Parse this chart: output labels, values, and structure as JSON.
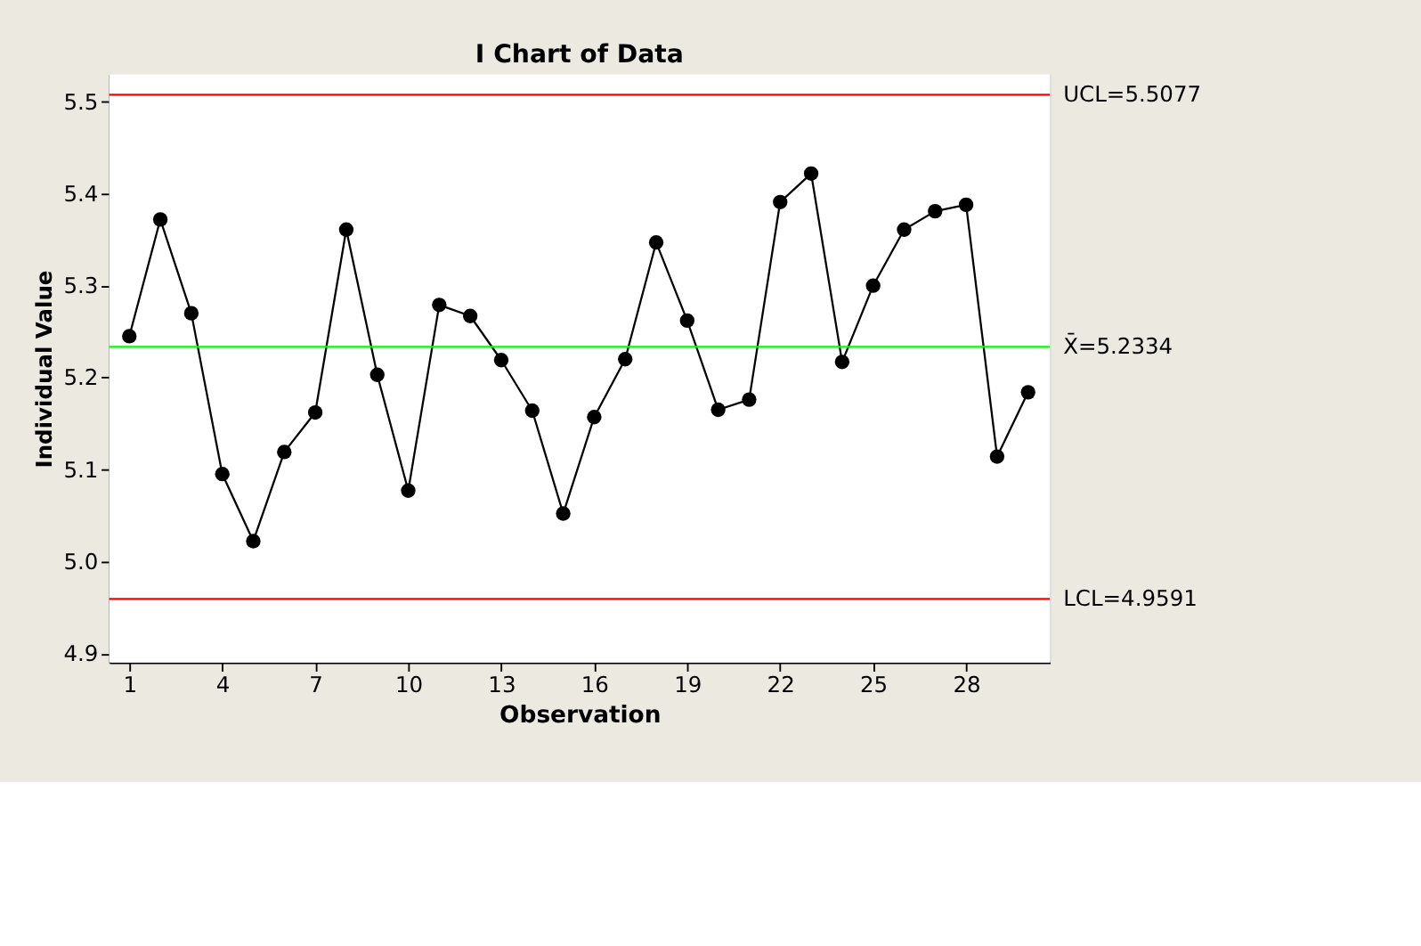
{
  "chart_data": {
    "type": "line",
    "title": "I Chart of Data",
    "xlabel": "Observation",
    "ylabel": "Individual Value",
    "x": [
      1,
      2,
      3,
      4,
      5,
      6,
      7,
      8,
      9,
      10,
      11,
      12,
      13,
      14,
      15,
      16,
      17,
      18,
      19,
      20,
      21,
      22,
      23,
      24,
      25,
      26,
      27,
      28,
      29,
      30
    ],
    "series": [
      {
        "color": "#000000",
        "values": [
          5.245,
          5.372,
          5.27,
          5.095,
          5.022,
          5.119,
          5.162,
          5.361,
          5.203,
          5.077,
          5.279,
          5.267,
          5.219,
          5.164,
          5.052,
          5.157,
          5.22,
          5.347,
          5.262,
          5.165,
          5.176,
          5.391,
          5.422,
          5.217,
          5.3,
          5.361,
          5.381,
          5.388,
          5.114,
          5.184
        ]
      }
    ],
    "xlim": [
      0.35,
      30.7
    ],
    "xticks": [
      1,
      4,
      7,
      10,
      13,
      16,
      19,
      22,
      25,
      28
    ],
    "ylim": [
      4.89,
      5.53
    ],
    "yticks": [
      4.9,
      {
        "value": 5.0,
        "label": "5.0"
      },
      5.1,
      5.2,
      5.3,
      5.4,
      5.5
    ],
    "ref_lines": [
      {
        "axis": "y",
        "value": 5.5077,
        "label": "UCL=5.5077",
        "color": "#ff0000"
      },
      {
        "axis": "y",
        "value": 5.2334,
        "label": "X̄=5.2334",
        "color": "#00ff00"
      },
      {
        "axis": "y",
        "value": 4.9591,
        "label": "LCL=4.9591",
        "color": "#ff0000"
      }
    ],
    "marker": "circle",
    "line_style": "solid"
  }
}
